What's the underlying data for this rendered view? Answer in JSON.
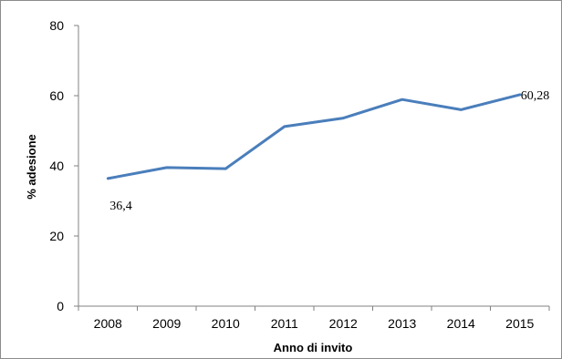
{
  "chart_data": {
    "type": "line",
    "title": "",
    "xlabel": "Anno di invito",
    "ylabel": "% adesione",
    "categories": [
      "2008",
      "2009",
      "2010",
      "2011",
      "2012",
      "2013",
      "2014",
      "2015"
    ],
    "series": [
      {
        "values": [
          36.4,
          39.5,
          39.2,
          51.2,
          53.6,
          58.9,
          56.0,
          60.28
        ],
        "color": "#4a7ebb"
      }
    ],
    "ylim": [
      0,
      80
    ],
    "yticks": [
      "0",
      "20",
      "40",
      "60",
      "80"
    ],
    "data_labels": [
      {
        "index": 0,
        "text": "36,4"
      },
      {
        "index": 7,
        "text": "60,28"
      }
    ],
    "grid": false,
    "legend": "none"
  }
}
